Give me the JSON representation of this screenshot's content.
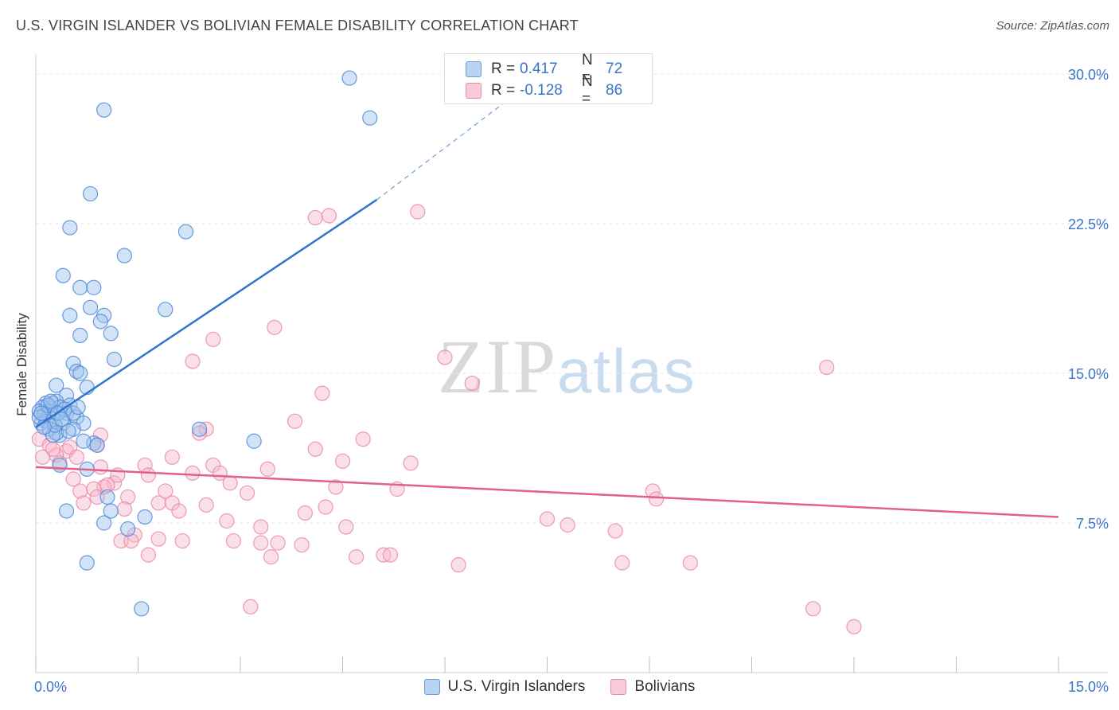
{
  "title": "U.S. VIRGIN ISLANDER VS BOLIVIAN FEMALE DISABILITY CORRELATION CHART",
  "source": "Source: ZipAtlas.com",
  "watermark": {
    "zip": "ZIP",
    "atlas": "atlas"
  },
  "colors": {
    "blue_fill": "#9ec2ee",
    "blue_stroke": "#4d8ad6",
    "blue_line": "#2f74cf",
    "pink_fill": "#f6b9cc",
    "pink_stroke": "#e88aa8",
    "pink_line": "#e0628c",
    "tick_label": "#3a74c9",
    "grid": "#e6e6e6"
  },
  "legend_top": {
    "rows": [
      {
        "r_label": "R =",
        "r_value": "0.417",
        "n_label": "N =",
        "n_value": "72"
      },
      {
        "r_label": "R =",
        "r_value": "-0.128",
        "n_label": "N =",
        "n_value": "86"
      }
    ]
  },
  "chart_data": {
    "type": "scatter",
    "title": "U.S. VIRGIN ISLANDER VS BOLIVIAN FEMALE DISABILITY CORRELATION CHART",
    "xlabel": "",
    "ylabel": "Female Disability",
    "xlim": [
      0,
      15
    ],
    "ylim": [
      0,
      31
    ],
    "x_tick_labels": [
      "0.0%",
      "15.0%"
    ],
    "y_ticks": [
      7.5,
      15.0,
      22.5,
      30.0
    ],
    "y_tick_labels": [
      "7.5%",
      "15.0%",
      "22.5%",
      "30.0%"
    ],
    "grid": true,
    "legend_position": "bottom",
    "series": [
      {
        "name": "U.S. Virgin Islanders",
        "r": 0.417,
        "n": 72,
        "trend": {
          "x0": 0,
          "y0": 12.3,
          "x1": 5.0,
          "y1": 23.7,
          "dashed_to_x": 7.0,
          "dashed_to_y": 28.9
        },
        "points": [
          [
            4.6,
            29.8
          ],
          [
            4.9,
            27.8
          ],
          [
            1.0,
            28.2
          ],
          [
            0.8,
            24.0
          ],
          [
            0.5,
            22.3
          ],
          [
            2.2,
            22.1
          ],
          [
            1.3,
            20.9
          ],
          [
            0.4,
            19.9
          ],
          [
            0.65,
            19.3
          ],
          [
            0.85,
            19.3
          ],
          [
            0.5,
            17.9
          ],
          [
            0.8,
            18.3
          ],
          [
            1.0,
            17.9
          ],
          [
            1.9,
            18.2
          ],
          [
            0.95,
            17.6
          ],
          [
            1.1,
            17.0
          ],
          [
            0.65,
            16.9
          ],
          [
            1.15,
            15.7
          ],
          [
            0.55,
            15.5
          ],
          [
            0.6,
            15.1
          ],
          [
            0.65,
            15.0
          ],
          [
            0.3,
            14.4
          ],
          [
            0.75,
            14.3
          ],
          [
            0.45,
            13.9
          ],
          [
            0.15,
            13.5
          ],
          [
            0.25,
            13.5
          ],
          [
            0.3,
            13.6
          ],
          [
            0.5,
            13.4
          ],
          [
            0.1,
            13.3
          ],
          [
            0.35,
            13.3
          ],
          [
            0.05,
            13.1
          ],
          [
            0.2,
            13.1
          ],
          [
            0.45,
            13.0
          ],
          [
            0.6,
            12.8
          ],
          [
            0.12,
            12.9
          ],
          [
            0.25,
            12.7
          ],
          [
            0.08,
            12.5
          ],
          [
            0.4,
            12.5
          ],
          [
            0.7,
            12.5
          ],
          [
            0.15,
            12.6
          ],
          [
            0.2,
            12.2
          ],
          [
            0.55,
            12.2
          ],
          [
            0.35,
            11.9
          ],
          [
            2.4,
            12.2
          ],
          [
            0.3,
            12.0
          ],
          [
            0.25,
            11.9
          ],
          [
            0.85,
            11.5
          ],
          [
            0.7,
            11.6
          ],
          [
            0.9,
            11.4
          ],
          [
            3.2,
            11.6
          ],
          [
            0.35,
            10.4
          ],
          [
            0.75,
            10.2
          ],
          [
            1.05,
            8.8
          ],
          [
            0.45,
            8.1
          ],
          [
            1.1,
            8.1
          ],
          [
            1.6,
            7.8
          ],
          [
            1.0,
            7.5
          ],
          [
            1.35,
            7.2
          ],
          [
            0.75,
            5.5
          ],
          [
            1.55,
            3.2
          ],
          [
            0.05,
            12.8
          ],
          [
            0.18,
            13.4
          ],
          [
            0.28,
            12.4
          ],
          [
            0.42,
            13.2
          ],
          [
            0.55,
            13.0
          ],
          [
            0.12,
            12.3
          ],
          [
            0.32,
            13.0
          ],
          [
            0.48,
            12.1
          ],
          [
            0.22,
            13.6
          ],
          [
            0.38,
            12.7
          ],
          [
            0.62,
            13.3
          ],
          [
            0.08,
            13.0
          ]
        ]
      },
      {
        "name": "Bolivians",
        "r": -0.128,
        "n": 86,
        "trend": {
          "x0": 0,
          "y0": 10.3,
          "x1": 15.0,
          "y1": 7.8
        },
        "points": [
          [
            5.6,
            23.1
          ],
          [
            4.1,
            22.8
          ],
          [
            4.3,
            22.9
          ],
          [
            3.5,
            17.3
          ],
          [
            2.6,
            16.7
          ],
          [
            6.0,
            15.8
          ],
          [
            2.3,
            15.6
          ],
          [
            11.6,
            15.3
          ],
          [
            6.4,
            14.5
          ],
          [
            4.2,
            14.0
          ],
          [
            3.8,
            12.6
          ],
          [
            2.5,
            12.2
          ],
          [
            2.4,
            12.0
          ],
          [
            4.8,
            11.7
          ],
          [
            0.05,
            11.7
          ],
          [
            0.2,
            11.4
          ],
          [
            0.45,
            11.1
          ],
          [
            0.5,
            11.3
          ],
          [
            0.3,
            10.9
          ],
          [
            0.1,
            10.8
          ],
          [
            0.6,
            10.8
          ],
          [
            0.95,
            11.9
          ],
          [
            0.9,
            11.4
          ],
          [
            4.1,
            11.2
          ],
          [
            2.0,
            10.8
          ],
          [
            4.5,
            10.6
          ],
          [
            5.5,
            10.5
          ],
          [
            1.6,
            10.4
          ],
          [
            2.6,
            10.4
          ],
          [
            3.4,
            10.2
          ],
          [
            0.95,
            10.3
          ],
          [
            2.3,
            10.0
          ],
          [
            2.7,
            10.0
          ],
          [
            1.65,
            9.9
          ],
          [
            0.35,
            10.5
          ],
          [
            1.15,
            9.5
          ],
          [
            1.2,
            9.9
          ],
          [
            1.0,
            9.3
          ],
          [
            1.05,
            9.4
          ],
          [
            2.85,
            9.5
          ],
          [
            4.4,
            9.3
          ],
          [
            5.3,
            9.2
          ],
          [
            3.1,
            9.0
          ],
          [
            9.05,
            9.1
          ],
          [
            1.9,
            9.1
          ],
          [
            0.65,
            9.1
          ],
          [
            0.85,
            9.2
          ],
          [
            0.9,
            8.8
          ],
          [
            1.35,
            8.8
          ],
          [
            9.1,
            8.7
          ],
          [
            1.8,
            8.5
          ],
          [
            2.0,
            8.5
          ],
          [
            2.5,
            8.4
          ],
          [
            4.25,
            8.3
          ],
          [
            3.95,
            8.0
          ],
          [
            2.1,
            8.1
          ],
          [
            0.7,
            8.5
          ],
          [
            7.5,
            7.7
          ],
          [
            2.8,
            7.6
          ],
          [
            3.3,
            7.3
          ],
          [
            7.8,
            7.4
          ],
          [
            4.55,
            7.3
          ],
          [
            8.5,
            7.1
          ],
          [
            1.45,
            6.9
          ],
          [
            1.8,
            6.7
          ],
          [
            1.25,
            6.6
          ],
          [
            1.4,
            6.6
          ],
          [
            2.15,
            6.6
          ],
          [
            3.3,
            6.5
          ],
          [
            3.55,
            6.5
          ],
          [
            3.9,
            6.4
          ],
          [
            2.9,
            6.6
          ],
          [
            1.65,
            5.9
          ],
          [
            3.45,
            5.8
          ],
          [
            4.7,
            5.8
          ],
          [
            5.1,
            5.9
          ],
          [
            5.2,
            5.9
          ],
          [
            6.2,
            5.4
          ],
          [
            8.6,
            5.5
          ],
          [
            9.6,
            5.5
          ],
          [
            3.15,
            3.3
          ],
          [
            11.4,
            3.2
          ],
          [
            12.0,
            2.3
          ],
          [
            0.25,
            11.2
          ],
          [
            0.55,
            9.7
          ],
          [
            1.3,
            8.2
          ]
        ]
      }
    ]
  },
  "bottom_legend": {
    "items": [
      {
        "label": "U.S. Virgin Islanders"
      },
      {
        "label": "Bolivians"
      }
    ]
  }
}
